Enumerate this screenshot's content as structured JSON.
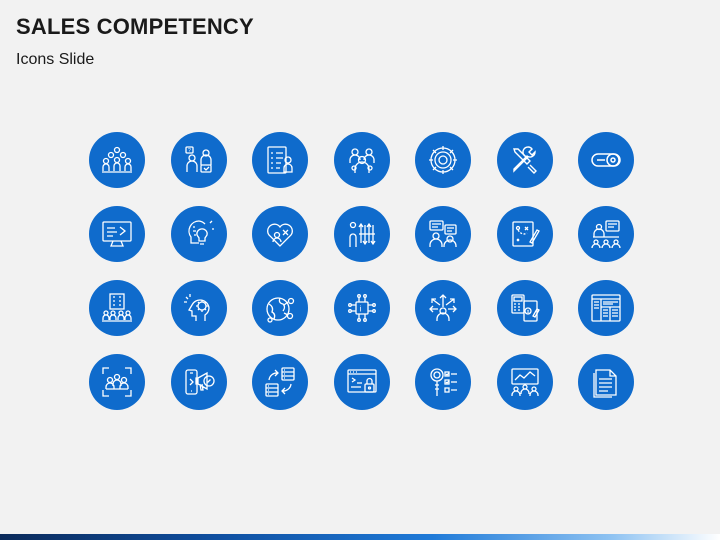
{
  "slide": {
    "title": "SALES COMPETENCY",
    "subtitle": "Icons Slide"
  },
  "colors": {
    "background": "#f2f2f2",
    "icon_circle": "#0f6bcc",
    "icon_stroke": "#ffffff",
    "title_text": "#1a1a1a"
  },
  "icons": [
    "team-group-icon",
    "interview-discussion-icon",
    "checklist-candidate-icon",
    "team-members-icon",
    "gear-cycle-icon",
    "tools-wrench-icon",
    "toggle-switch-icon",
    "monitor-presentation-icon",
    "brain-idea-icon",
    "heart-health-icon",
    "stress-arrows-icon",
    "team-chat-icon",
    "strategy-board-icon",
    "meeting-presentation-icon",
    "company-team-icon",
    "mind-gear-icon",
    "global-network-icon",
    "chip-network-icon",
    "leader-arrows-icon",
    "calculator-finance-icon",
    "web-layout-icon",
    "focus-team-icon",
    "digital-marketing-icon",
    "data-transfer-icon",
    "secure-browser-icon",
    "search-checklist-icon",
    "board-meeting-icon",
    "document-icon"
  ]
}
